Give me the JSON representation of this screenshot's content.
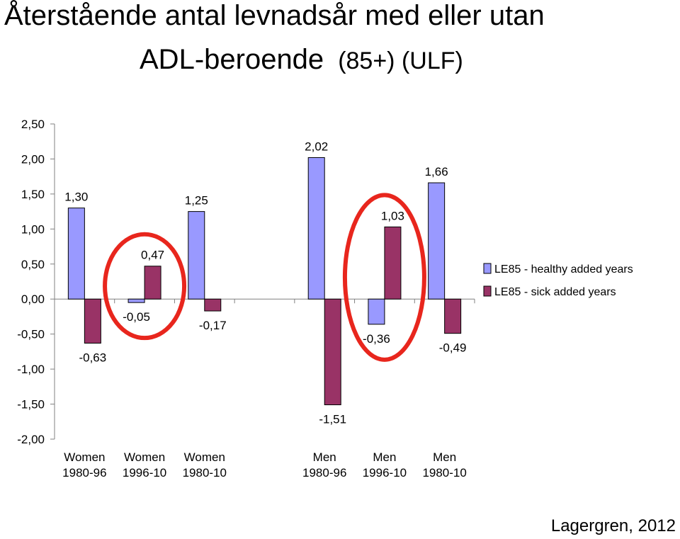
{
  "title": {
    "line1": "Återstående antal levnadsår med eller utan",
    "line2": "ADL-beroende",
    "line2_sub": "(85+) (ULF)"
  },
  "credit": "Lagergren, 2012",
  "colors": {
    "healthy": "#9999ff",
    "sick": "#993366",
    "circle": "#e8261d",
    "axis": "#808080"
  },
  "chart_data": {
    "type": "bar",
    "categories": [
      [
        "Women",
        "1980-96"
      ],
      [
        "Women",
        "1996-10"
      ],
      [
        "Women",
        "1980-10"
      ],
      [
        "",
        ""
      ],
      [
        "Men",
        "1980-96"
      ],
      [
        "Men",
        "1996-10"
      ],
      [
        "Men",
        "1980-10"
      ]
    ],
    "series": [
      {
        "name": "LE85 - healthy added years",
        "values": [
          1.3,
          -0.05,
          1.25,
          null,
          2.02,
          -0.36,
          1.66
        ],
        "labels": [
          "1,30",
          "-0,05",
          "1,25",
          "",
          "2,02",
          "-0,36",
          "1,66"
        ]
      },
      {
        "name": "LE85 - sick added years",
        "values": [
          -0.63,
          0.47,
          -0.17,
          null,
          -1.51,
          1.03,
          -0.49
        ],
        "labels": [
          "-0,63",
          "0,47",
          "-0,17",
          "",
          "-1,51",
          "1,03",
          "-0,49"
        ]
      }
    ],
    "ylim": [
      -2.0,
      2.5
    ],
    "yticks": [
      2.5,
      2.0,
      1.5,
      1.0,
      0.5,
      0.0,
      -0.5,
      -1.0,
      -1.5,
      -2.0
    ],
    "ytick_labels": [
      "2,50",
      "2,00",
      "1,50",
      "1,00",
      "0,50",
      "0,00",
      "-0,50",
      "-1,00",
      "-1,50",
      "-2,00"
    ],
    "grid": false,
    "legend": "right",
    "annotations": [
      {
        "type": "circle",
        "around_category": 1
      },
      {
        "type": "circle",
        "around_category": 5
      }
    ]
  }
}
